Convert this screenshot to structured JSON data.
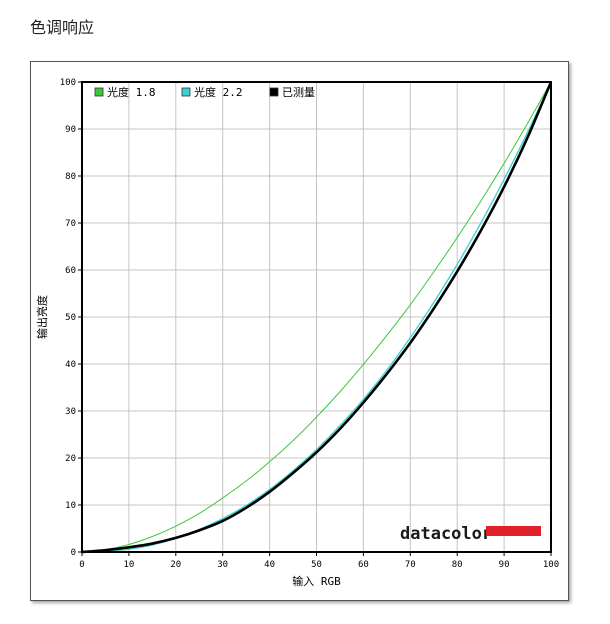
{
  "page_title": "色调响应",
  "chart_data": {
    "type": "line",
    "title": "",
    "xlabel": "输入 RGB",
    "ylabel": "输出亮度",
    "xlim": [
      0,
      100
    ],
    "ylim": [
      0,
      100
    ],
    "xticks": [
      0,
      10,
      20,
      30,
      40,
      50,
      60,
      70,
      80,
      90,
      100
    ],
    "yticks": [
      0,
      10,
      20,
      30,
      40,
      50,
      60,
      70,
      80,
      90,
      100
    ],
    "grid": true,
    "legend_position": "top-left",
    "logo_text": "datacolor",
    "series": [
      {
        "name": "光度 1.8",
        "color": "#3cc83c",
        "x": [
          0,
          5,
          10,
          15,
          20,
          25,
          30,
          35,
          40,
          45,
          50,
          55,
          60,
          65,
          70,
          75,
          80,
          85,
          90,
          95,
          100
        ],
        "y": [
          0,
          0.5,
          1.6,
          3.3,
          5.5,
          8.2,
          11.5,
          15.1,
          19.2,
          23.7,
          28.7,
          34.1,
          39.9,
          46.1,
          52.6,
          59.6,
          66.9,
          74.6,
          82.7,
          91.2,
          100
        ]
      },
      {
        "name": "光度 2.2",
        "color": "#3cd0d0",
        "x": [
          0,
          5,
          10,
          15,
          20,
          25,
          30,
          35,
          40,
          45,
          50,
          55,
          60,
          65,
          70,
          75,
          80,
          85,
          90,
          95,
          100
        ],
        "y": [
          0,
          0.1,
          0.6,
          1.5,
          2.9,
          4.8,
          7.1,
          9.9,
          13.3,
          17.3,
          21.8,
          26.9,
          32.5,
          38.7,
          45.6,
          53.1,
          61.2,
          69.9,
          79.3,
          89.3,
          100
        ]
      },
      {
        "name": "已测量",
        "color": "#000000",
        "x": [
          0,
          5,
          10,
          15,
          20,
          25,
          30,
          35,
          40,
          45,
          50,
          55,
          60,
          65,
          70,
          75,
          80,
          85,
          90,
          95,
          100
        ],
        "y": [
          0,
          0.4,
          1.0,
          1.8,
          3.0,
          4.6,
          6.6,
          9.4,
          12.8,
          16.8,
          21.2,
          26.2,
          31.8,
          37.9,
          44.5,
          51.8,
          59.7,
          68.3,
          77.7,
          88.2,
          100
        ]
      }
    ]
  }
}
